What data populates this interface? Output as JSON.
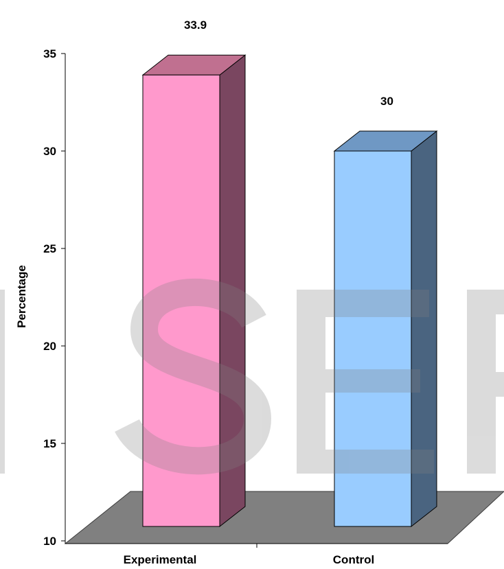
{
  "chart_data": {
    "type": "bar",
    "style": "3d",
    "categories": [
      "Experimental",
      "Control"
    ],
    "values": [
      33.9,
      30
    ],
    "data_labels": [
      "33.9",
      "30"
    ],
    "colors": [
      "#ff99cc",
      "#99ccff"
    ],
    "ylabel": "Percentage",
    "xlabel": "",
    "ylim": [
      10,
      35
    ],
    "yticks": [
      "10",
      "15",
      "20",
      "25",
      "30",
      "35"
    ],
    "grid": false,
    "legend": "none"
  },
  "watermark": {
    "text": "IJSER"
  }
}
